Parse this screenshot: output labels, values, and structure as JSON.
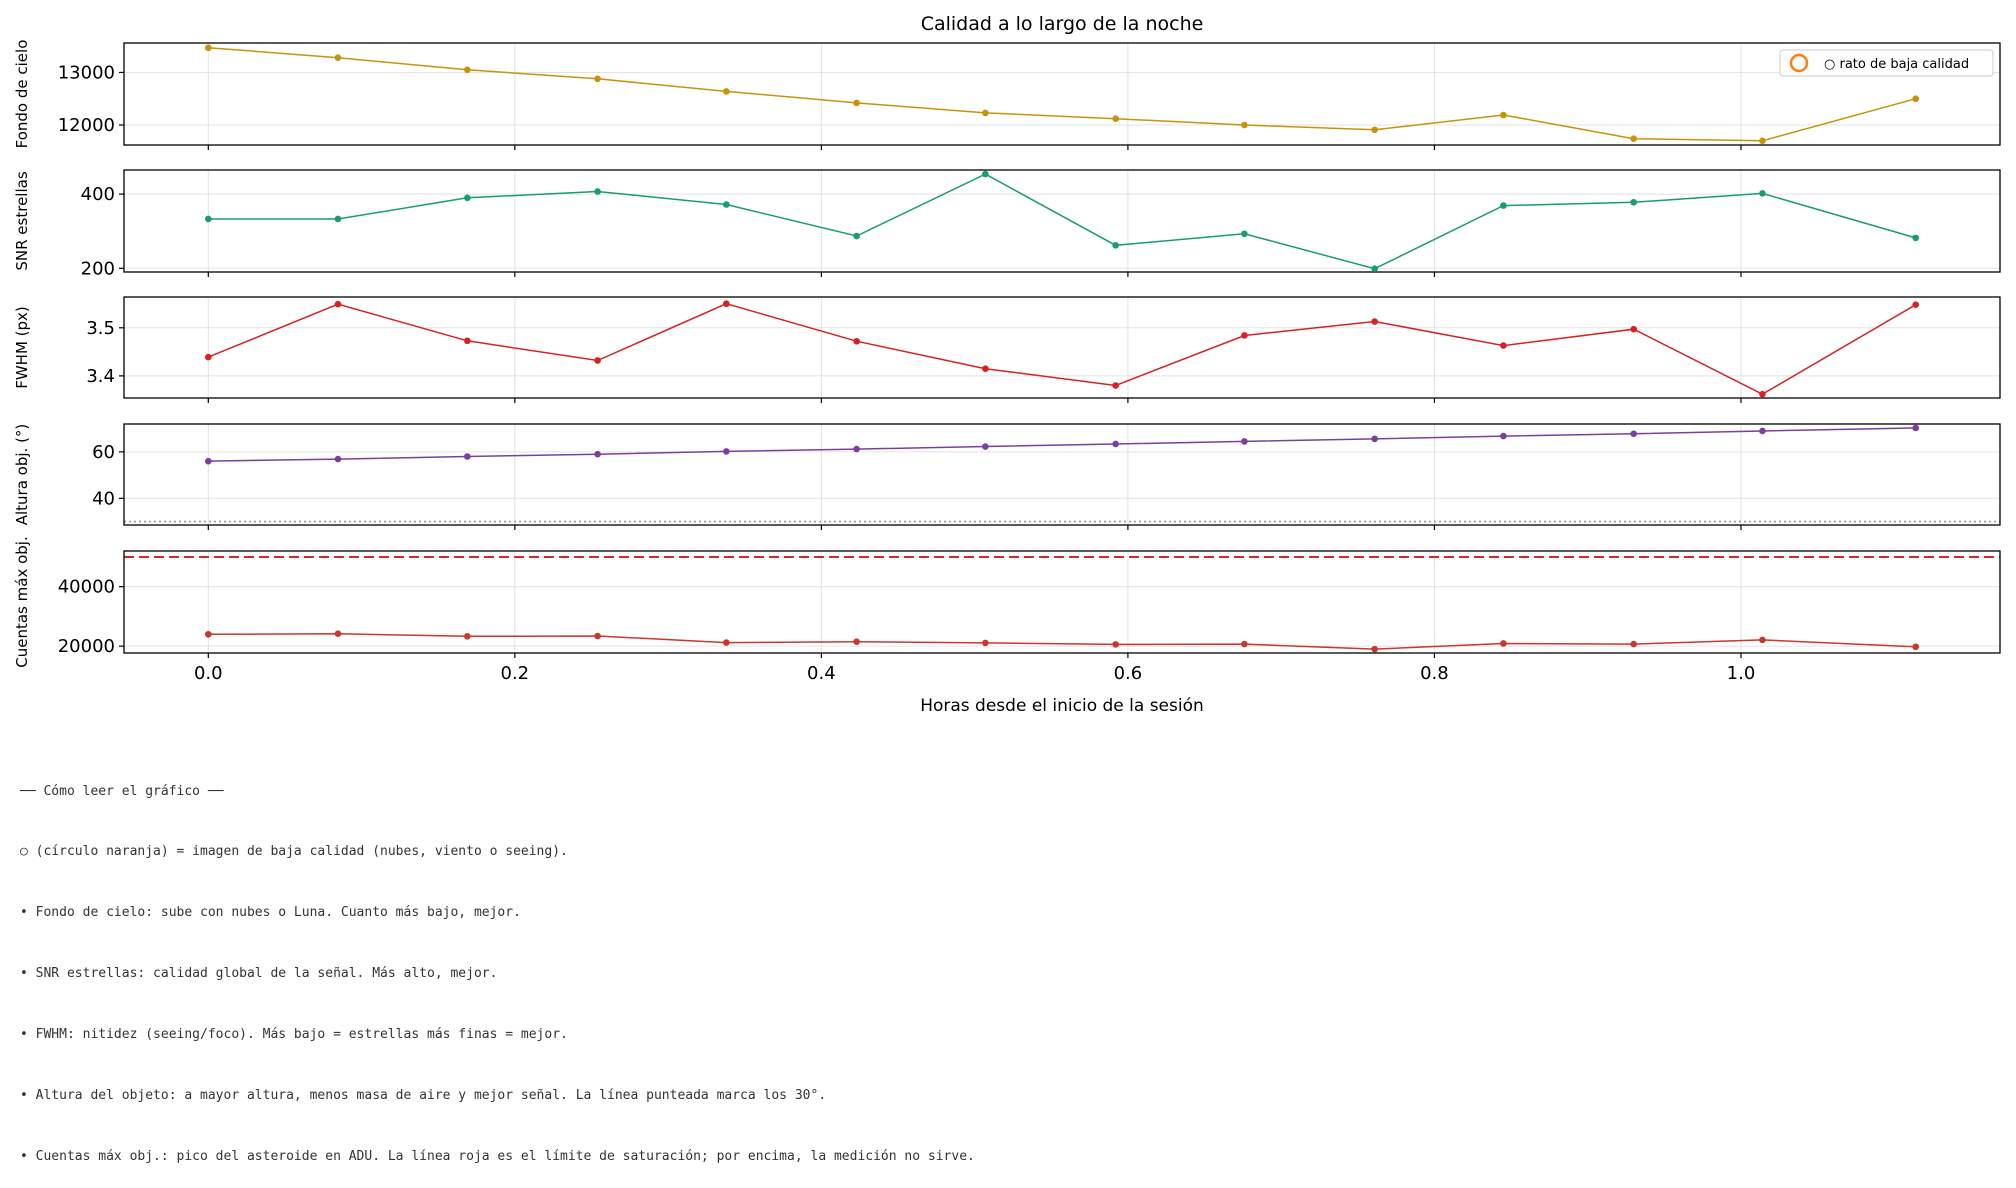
{
  "chart_data": {
    "type": "line",
    "title": "Calidad a lo largo de la noche",
    "xlabel": "Horas desde el inicio de la sesión",
    "x": [
      0.0,
      0.0846,
      0.169,
      0.254,
      0.338,
      0.423,
      0.507,
      0.592,
      0.676,
      0.761,
      0.845,
      0.93,
      1.014,
      1.114
    ],
    "xlim": [
      -0.055,
      1.169
    ],
    "xticks": [
      "0.0",
      "0.2",
      "0.4",
      "0.6",
      "0.8",
      "1.0"
    ],
    "xtick_values": [
      0.0,
      0.2,
      0.4,
      0.6,
      0.8,
      1.0
    ],
    "grid": true,
    "legend": {
      "label": "○ rato de baja calidad",
      "placement": "top-right",
      "color": "#ff7f0e"
    },
    "panels": [
      {
        "ylabel": "Fondo de cielo",
        "color": "#c9920c",
        "ylim": [
          11620,
          13560
        ],
        "yticks": [
          12000,
          13000
        ],
        "ytick_labels": [
          "12000",
          "13000"
        ],
        "values": [
          13470,
          13280,
          13050,
          12880,
          12640,
          12420,
          12230,
          12120,
          12000,
          11910,
          12190,
          11740,
          11700,
          12500
        ]
      },
      {
        "ylabel": "SNR estrellas",
        "color": "#179c74",
        "ylim": [
          190,
          465
        ],
        "yticks": [
          200,
          400
        ],
        "ytick_labels": [
          "200",
          "400"
        ],
        "values": [
          333,
          333,
          390,
          407,
          372,
          287,
          454,
          262,
          293,
          199,
          369,
          378,
          402,
          282
        ]
      },
      {
        "ylabel": "FWHM (px)",
        "color": "#d62222",
        "ylim": [
          3.354,
          3.564
        ],
        "yticks": [
          3.4,
          3.5
        ],
        "ytick_labels": [
          "3.4",
          "3.5"
        ],
        "values": [
          3.439,
          3.549,
          3.473,
          3.432,
          3.55,
          3.472,
          3.415,
          3.38,
          3.484,
          3.513,
          3.463,
          3.497,
          3.362,
          3.548
        ]
      },
      {
        "ylabel": "Altura obj. (°)",
        "color": "#7b3fa0",
        "ylim": [
          28.5,
          72
        ],
        "yticks": [
          40,
          60
        ],
        "ytick_labels": [
          "40",
          "60"
        ],
        "values": [
          56.0,
          56.9,
          58.0,
          59.0,
          60.2,
          61.2,
          62.3,
          63.4,
          64.5,
          65.6,
          66.8,
          67.8,
          69.0,
          70.3
        ],
        "reference_line": {
          "y": 30,
          "style": "dotted",
          "color": "#999999"
        }
      },
      {
        "ylabel": "Cuentas máx obj.",
        "color": "#c8382c",
        "ylim": [
          17700,
          52000
        ],
        "yticks": [
          20000,
          40000
        ],
        "ytick_labels": [
          "20000",
          "40000"
        ],
        "values": [
          24000,
          24200,
          23300,
          23400,
          21200,
          21500,
          21100,
          20600,
          20700,
          19000,
          20900,
          20700,
          22100,
          19800
        ],
        "reference_line": {
          "y": 50000,
          "style": "dashed",
          "color": "#d62728"
        }
      }
    ]
  },
  "notes": [
    "── Cómo leer el gráfico ──",
    "○ (círculo naranja) = imagen de baja calidad (nubes, viento o seeing).",
    "• Fondo de cielo: sube con nubes o Luna. Cuanto más bajo, mejor.",
    "• SNR estrellas: calidad global de la señal. Más alto, mejor.",
    "• FWHM: nitidez (seeing/foco). Más bajo = estrellas más finas = mejor.",
    "• Altura del objeto: a mayor altura, menos masa de aire y mejor señal. La línea punteada marca los 30°.",
    "• Cuentas máx obj.: pico del asteroide en ADU. La línea roja es el límite de saturación; por encima, la medición no sirve."
  ]
}
